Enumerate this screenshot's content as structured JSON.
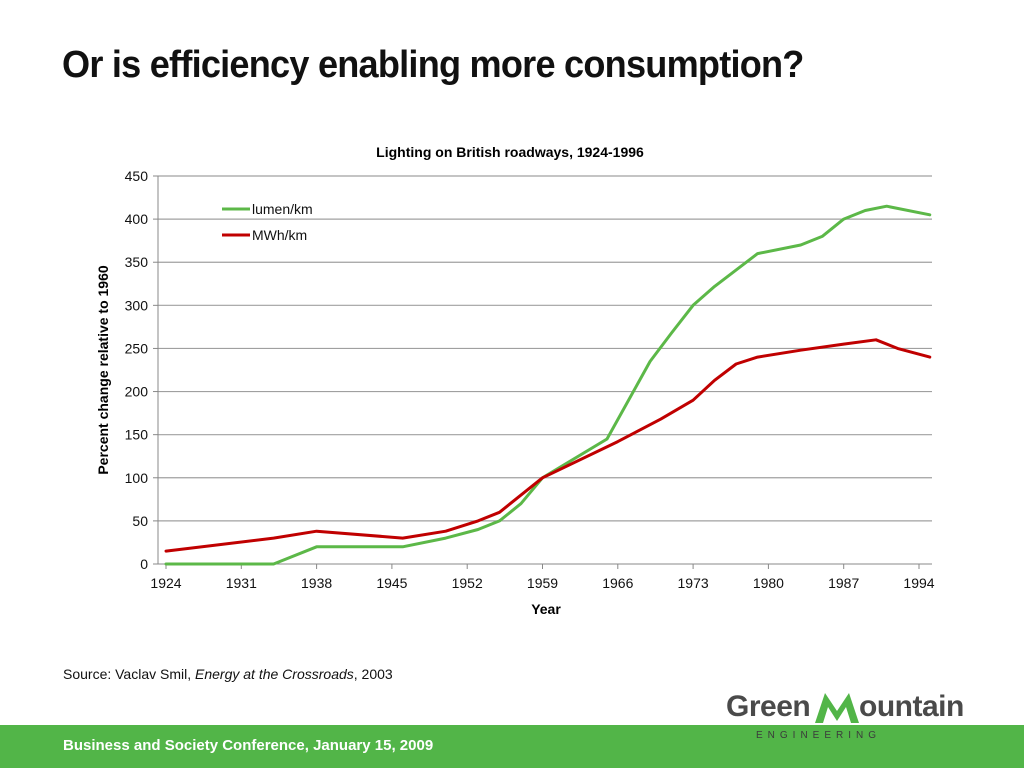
{
  "slide": {
    "title": "Or is efficiency enabling more consumption?",
    "source_prefix": "Source: Vaclav Smil, ",
    "source_title": "Energy at the Crossroads",
    "source_suffix": ", 2003",
    "footer": "Business and Society Conference, January 15, 2009",
    "logo": {
      "word_left": "Green",
      "word_m": "M",
      "word_right": "ountain",
      "subtitle": "ENGINEERING"
    },
    "colors": {
      "footer_green": "#52b548",
      "logo_green": "#52b548",
      "logo_gray": "#4a4a4a"
    }
  },
  "chart_data": {
    "type": "line",
    "title": "Lighting on British roadways, 1924-1996",
    "xlabel": "Year",
    "ylabel": "Percent change relative to 1960",
    "xlim": [
      1924,
      1995
    ],
    "ylim": [
      0,
      450
    ],
    "x_ticks": [
      1924,
      1931,
      1938,
      1945,
      1952,
      1959,
      1966,
      1973,
      1980,
      1987,
      1994
    ],
    "y_ticks": [
      0,
      50,
      100,
      150,
      200,
      250,
      300,
      350,
      400,
      450
    ],
    "grid": "horizontal",
    "legend_position": "top-left",
    "series": [
      {
        "name": "lumen/km",
        "color": "#5cb848",
        "x": [
          1924,
          1934,
          1938,
          1946,
          1950,
          1953,
          1955,
          1957,
          1959,
          1965,
          1969,
          1971,
          1973,
          1975,
          1979,
          1983,
          1985,
          1987,
          1989,
          1991,
          1995
        ],
        "y": [
          0,
          0,
          20,
          20,
          30,
          40,
          50,
          70,
          100,
          145,
          235,
          268,
          300,
          322,
          360,
          370,
          380,
          400,
          410,
          415,
          405
        ]
      },
      {
        "name": "MWh/km",
        "color": "#c00000",
        "x": [
          1924,
          1934,
          1938,
          1946,
          1950,
          1953,
          1955,
          1959,
          1966,
          1970,
          1973,
          1975,
          1977,
          1979,
          1983,
          1987,
          1990,
          1992,
          1995
        ],
        "y": [
          15,
          30,
          38,
          30,
          38,
          50,
          60,
          100,
          142,
          168,
          190,
          213,
          232,
          240,
          248,
          255,
          260,
          250,
          240
        ]
      }
    ]
  }
}
